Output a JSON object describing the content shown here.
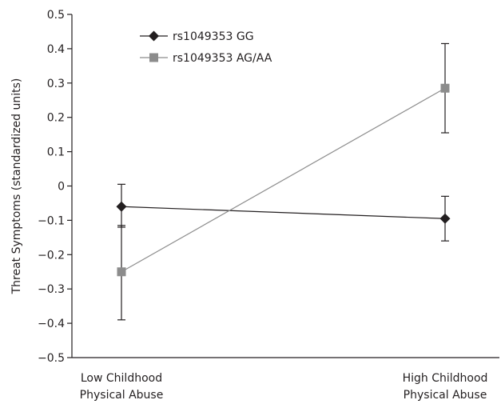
{
  "chart_data": {
    "type": "line",
    "title": "",
    "xlabel": "",
    "ylabel": "Threat Symptoms (standardized units)",
    "ylim": [
      -0.5,
      0.5
    ],
    "yticks": [
      "0.5",
      "0.4",
      "0.3",
      "0.2",
      "0.1",
      "0",
      "−0.1",
      "−0.2",
      "−0.3",
      "−0.4",
      "−0.5"
    ],
    "categories": [
      [
        "Low Childhood",
        "Physical Abuse"
      ],
      [
        "High Childhood",
        "Physical Abuse"
      ]
    ],
    "legend_position": "top-left",
    "grid": false,
    "series": [
      {
        "name": "rs1049353 GG",
        "marker": "diamond",
        "color": "#231f20",
        "values": [
          -0.06,
          -0.095
        ],
        "err_low": [
          -0.12,
          -0.16
        ],
        "err_high": [
          0.005,
          -0.03
        ]
      },
      {
        "name": "rs1049353 AG/AA",
        "marker": "square",
        "color": "#8c8c8c",
        "values": [
          -0.25,
          0.285
        ],
        "err_low": [
          -0.39,
          0.155
        ],
        "err_high": [
          -0.115,
          0.415
        ]
      }
    ]
  }
}
